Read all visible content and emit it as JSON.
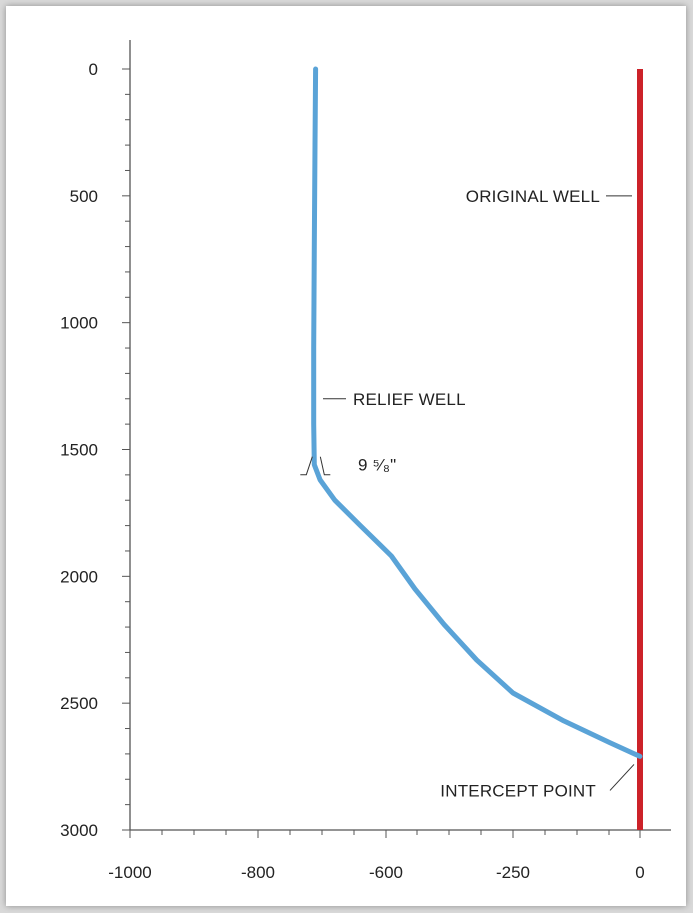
{
  "chart_data": {
    "type": "line",
    "title": "",
    "xlabel": "",
    "ylabel": "",
    "y_inverted": true,
    "ylim": [
      0,
      3000
    ],
    "yticks": [
      0,
      500,
      1000,
      1500,
      2000,
      2500,
      3000
    ],
    "xtick_labels": [
      "-1000",
      "-800",
      "-600",
      "-250",
      "0"
    ],
    "grid": false,
    "series": [
      {
        "name": "ORIGINAL WELL",
        "color": "#cc2229",
        "points": [
          [
            0,
            0
          ],
          [
            0,
            3000
          ]
        ]
      },
      {
        "name": "RELIEF WELL",
        "color": "#5aa3d7",
        "points": [
          [
            -710,
            0
          ],
          [
            -711,
            300
          ],
          [
            -712,
            700
          ],
          [
            -713,
            1100
          ],
          [
            -713,
            1400
          ],
          [
            -712,
            1560
          ],
          [
            -703,
            1620
          ],
          [
            -680,
            1700
          ],
          [
            -640,
            1800
          ],
          [
            -585,
            1920
          ],
          [
            -520,
            2050
          ],
          [
            -440,
            2190
          ],
          [
            -350,
            2330
          ],
          [
            -250,
            2460
          ],
          [
            -150,
            2570
          ],
          [
            -60,
            2655
          ],
          [
            0,
            2710
          ]
        ]
      }
    ],
    "annotations": [
      {
        "text": "ORIGINAL WELL",
        "target": "original-well"
      },
      {
        "text": "RELIEF WELL",
        "target": "relief-well"
      },
      {
        "text": "9 ⁵⁄₈\"",
        "target": "casing-marker",
        "depth": 1560
      },
      {
        "text": "INTERCEPT POINT",
        "target": "intercept",
        "depth": 2710
      }
    ]
  }
}
